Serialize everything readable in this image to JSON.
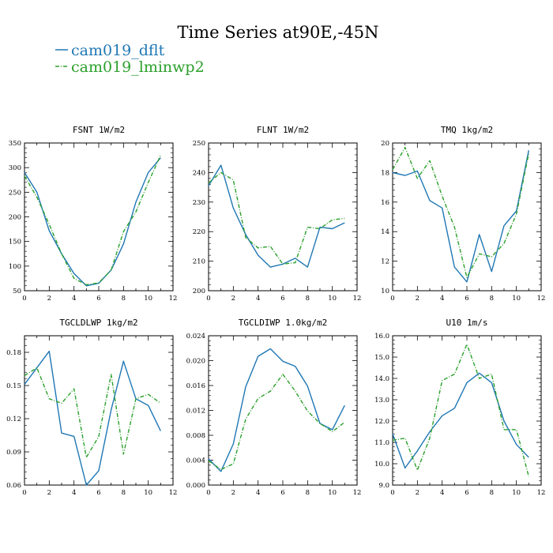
{
  "title": "Time Series at90E,-45N",
  "colors": {
    "dflt": "#1f77b4",
    "lminwp2": "#2ca02c"
  },
  "legend": [
    {
      "name": "cam019_dflt",
      "style": "solid",
      "color": "#1f77b4"
    },
    {
      "name": "cam019_lminwp2",
      "style": "dash-dot",
      "color": "#2ca02c"
    }
  ],
  "chart_data": [
    {
      "type": "line",
      "title": "FSNT  1W/m2",
      "x": [
        0,
        1,
        2,
        3,
        4,
        5,
        6,
        7,
        8,
        9,
        10,
        11
      ],
      "xlim": [
        0,
        12
      ],
      "xticks": [
        "0",
        "2",
        "4",
        "6",
        "8",
        "10",
        "12"
      ],
      "ylim": [
        50,
        350
      ],
      "yticks": [
        "50",
        "100",
        "150",
        "200",
        "250",
        "300",
        "350"
      ],
      "series": [
        {
          "name": "cam019_dflt",
          "values": [
            290,
            250,
            172,
            125,
            85,
            60,
            65,
            92,
            145,
            230,
            290,
            320
          ]
        },
        {
          "name": "cam019_lminwp2",
          "values": [
            283,
            240,
            185,
            125,
            75,
            62,
            66,
            92,
            170,
            210,
            270,
            325
          ]
        }
      ]
    },
    {
      "type": "line",
      "title": "FLNT  1W/m2",
      "x": [
        0,
        1,
        2,
        3,
        4,
        5,
        6,
        7,
        8,
        9,
        10,
        11
      ],
      "xlim": [
        0,
        12
      ],
      "xticks": [
        "0",
        "2",
        "4",
        "6",
        "8",
        "10",
        "12"
      ],
      "ylim": [
        200,
        250
      ],
      "yticks": [
        "200",
        "210",
        "220",
        "230",
        "240",
        "250"
      ],
      "series": [
        {
          "name": "cam019_dflt",
          "values": [
            235.5,
            242.5,
            228,
            219,
            212,
            208,
            209,
            211,
            208,
            221.5,
            221,
            223
          ]
        },
        {
          "name": "cam019_lminwp2",
          "values": [
            236.5,
            240,
            237.5,
            218,
            214.5,
            215,
            209,
            209.5,
            221.5,
            221,
            224,
            224.5
          ]
        }
      ]
    },
    {
      "type": "line",
      "title": "TMQ  1kg/m2",
      "x": [
        0,
        1,
        2,
        3,
        4,
        5,
        6,
        7,
        8,
        9,
        10,
        11
      ],
      "xlim": [
        0,
        12
      ],
      "xticks": [
        "0",
        "2",
        "4",
        "6",
        "8",
        "10",
        "12"
      ],
      "ylim": [
        10,
        20
      ],
      "yticks": [
        "10",
        "12",
        "14",
        "16",
        "18",
        "20"
      ],
      "series": [
        {
          "name": "cam019_dflt",
          "values": [
            18,
            17.8,
            18.1,
            16.1,
            15.6,
            11.6,
            10.6,
            13.8,
            11.3,
            14.4,
            15.4,
            19.5
          ]
        },
        {
          "name": "cam019_lminwp2",
          "values": [
            18.2,
            19.7,
            17.6,
            18.8,
            16.4,
            14.3,
            10.9,
            12.5,
            12.3,
            13.2,
            15.2,
            19.3
          ]
        }
      ]
    },
    {
      "type": "line",
      "title": "TGCLDLWP  1kg/m2",
      "x": [
        0,
        1,
        2,
        3,
        4,
        5,
        6,
        7,
        8,
        9,
        10,
        11
      ],
      "xlim": [
        0,
        12
      ],
      "xticks": [
        "0",
        "2",
        "4",
        "6",
        "8",
        "10",
        "12"
      ],
      "ylim": [
        0.06,
        0.195
      ],
      "yticks": [
        "0.06",
        "0.09",
        "0.12",
        "0.15",
        "0.18"
      ],
      "series": [
        {
          "name": "cam019_dflt",
          "values": [
            0.151,
            0.166,
            0.181,
            0.107,
            0.104,
            0.06,
            0.073,
            0.128,
            0.172,
            0.138,
            0.132,
            0.109
          ]
        },
        {
          "name": "cam019_lminwp2",
          "values": [
            0.159,
            0.166,
            0.138,
            0.134,
            0.147,
            0.085,
            0.104,
            0.16,
            0.088,
            0.138,
            0.142,
            0.134
          ]
        }
      ]
    },
    {
      "type": "line",
      "title": "TGCLDIWP  1.0kg/m2",
      "x": [
        0,
        1,
        2,
        3,
        4,
        5,
        6,
        7,
        8,
        9,
        10,
        11
      ],
      "xlim": [
        0,
        12
      ],
      "xticks": [
        "0",
        "2",
        "4",
        "6",
        "8",
        "10",
        "12"
      ],
      "ylim": [
        0,
        0.024
      ],
      "yticks": [
        "0.000",
        "0.004",
        "0.008",
        "0.012",
        "0.016",
        "0.020",
        "0.024"
      ],
      "series": [
        {
          "name": "cam019_dflt",
          "values": [
            0.0042,
            0.0022,
            0.0066,
            0.0158,
            0.0207,
            0.0219,
            0.0199,
            0.0191,
            0.0159,
            0.0099,
            0.0089,
            0.0128
          ]
        },
        {
          "name": "cam019_lminwp2",
          "values": [
            0.0039,
            0.0025,
            0.0034,
            0.0106,
            0.0139,
            0.0151,
            0.0178,
            0.0151,
            0.0119,
            0.0099,
            0.0086,
            0.0101
          ]
        }
      ]
    },
    {
      "type": "line",
      "title": "U10  1m/s",
      "x": [
        0,
        1,
        2,
        3,
        4,
        5,
        6,
        7,
        8,
        9,
        10,
        11
      ],
      "xlim": [
        0,
        12
      ],
      "xticks": [
        "0",
        "2",
        "4",
        "6",
        "8",
        "10",
        "12"
      ],
      "ylim": [
        9,
        16
      ],
      "yticks": [
        "9.0",
        "10.0",
        "11.0",
        "12.0",
        "13.0",
        "14.0",
        "15.0",
        "16.0"
      ],
      "series": [
        {
          "name": "cam019_dflt",
          "values": [
            11.4,
            9.8,
            10.6,
            11.5,
            12.25,
            12.6,
            13.8,
            14.25,
            13.8,
            12.0,
            10.9,
            10.3
          ]
        },
        {
          "name": "cam019_lminwp2",
          "values": [
            11.1,
            11.2,
            9.7,
            11.2,
            13.9,
            14.2,
            15.6,
            14.0,
            14.2,
            11.6,
            11.6,
            9.4
          ]
        }
      ]
    }
  ]
}
